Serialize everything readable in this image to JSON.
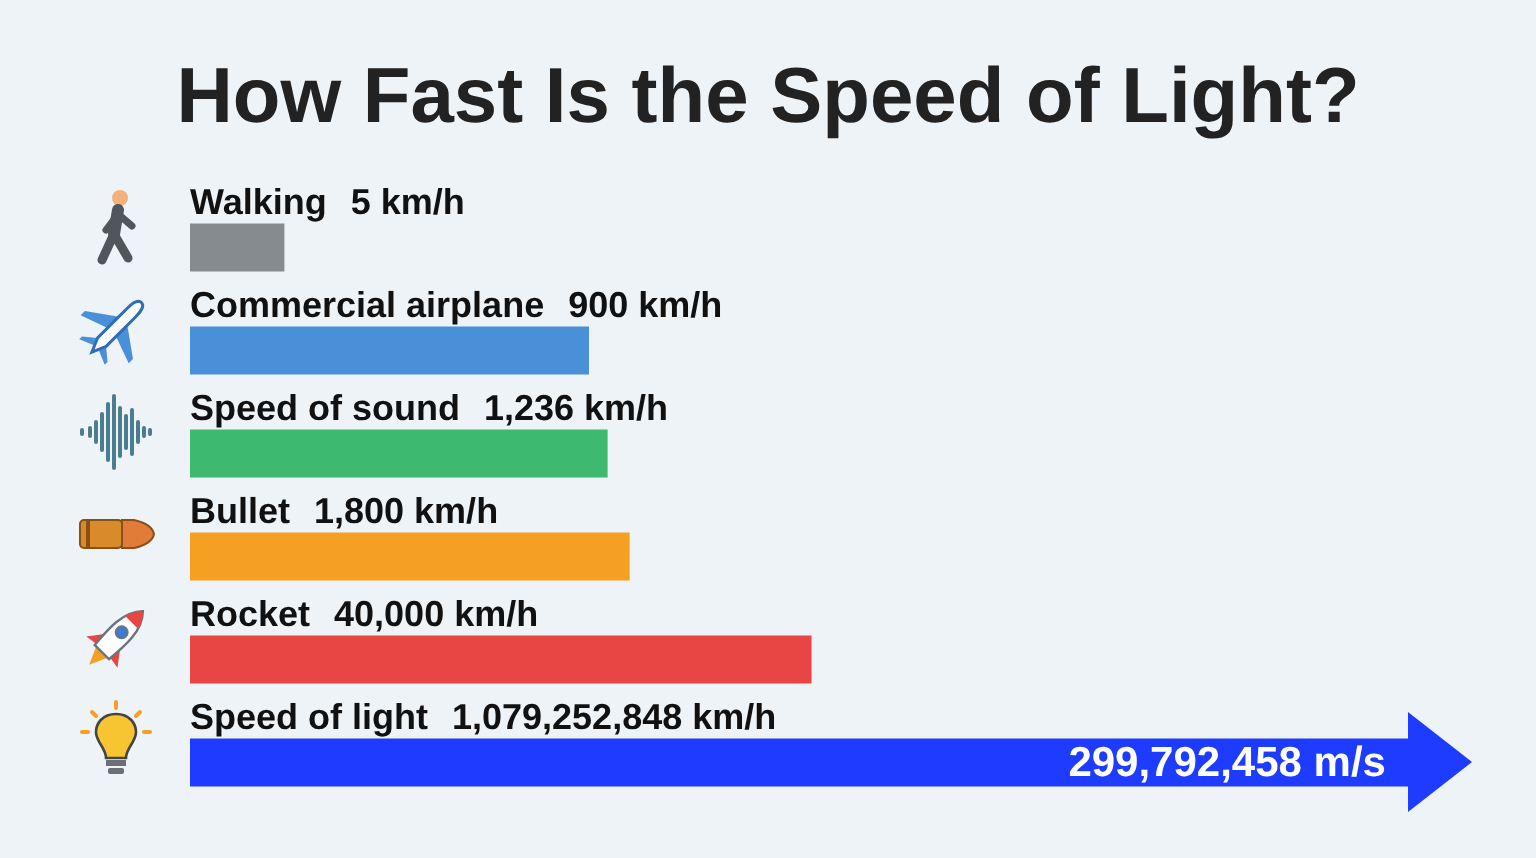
{
  "chart_data": {
    "type": "bar",
    "title": "How Fast Is the Speed of Light?",
    "orientation": "horizontal",
    "categories": [
      "Walking",
      "Commercial airplane",
      "Speed of sound",
      "Bullet",
      "Rocket",
      "Speed of light"
    ],
    "values": [
      5,
      900,
      1236,
      1800,
      40000,
      1079252848
    ],
    "value_labels": [
      "5 km/h",
      "900 km/h",
      "1,236 km/h",
      "1,800 km/h",
      "40,000 km/h",
      "1,079,252,848 km/h"
    ],
    "colors": [
      "#868b90",
      "#4a90d9",
      "#3dba6f",
      "#f5a023",
      "#e84545",
      "#1e3cff"
    ],
    "log": "x",
    "xlim": [
      1,
      1079252848
    ],
    "tick_labels": "y",
    "annotations": [
      "299,792,458 m/s"
    ]
  }
}
